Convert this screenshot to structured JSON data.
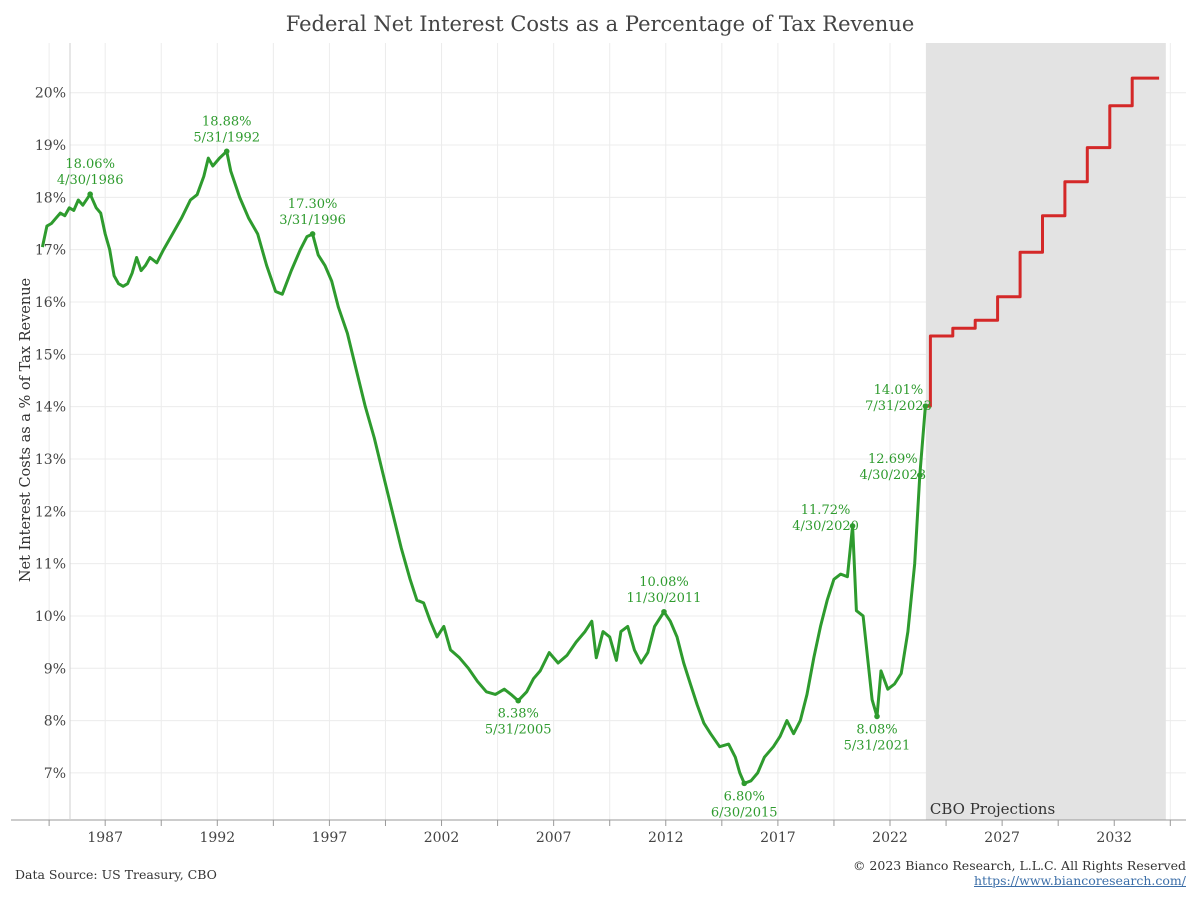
{
  "chart_data": {
    "type": "line",
    "title": "Federal Net Interest Costs as a Percentage of Tax Revenue",
    "ylabel": "Net Interest Costs as a % of Tax Revenue",
    "xlabel": "",
    "xlim": [
      1982.8,
      2035.2
    ],
    "ylim": [
      6.1,
      20.95
    ],
    "x_ticks": [
      "1987",
      "1992",
      "1997",
      "2002",
      "2007",
      "2012",
      "2017",
      "2022",
      "2027",
      "2032"
    ],
    "y_ticks": [
      "7%",
      "8%",
      "9%",
      "10%",
      "11%",
      "12%",
      "13%",
      "14%",
      "15%",
      "16%",
      "17%",
      "18%",
      "19%",
      "20%"
    ],
    "grid": true,
    "shaded_region": {
      "x_start": 2023.6,
      "x_end": 2034.3,
      "label": "CBO Projections",
      "color": "#e3e3e3"
    },
    "series": [
      {
        "color": "#2e9b2e",
        "points": [
          [
            1984.2,
            17.05
          ],
          [
            1984.4,
            17.45
          ],
          [
            1984.6,
            17.5
          ],
          [
            1984.8,
            17.6
          ],
          [
            1985.0,
            17.7
          ],
          [
            1985.2,
            17.65
          ],
          [
            1985.4,
            17.8
          ],
          [
            1985.6,
            17.75
          ],
          [
            1985.8,
            17.95
          ],
          [
            1986.0,
            17.85
          ],
          [
            1986.33,
            18.06
          ],
          [
            1986.6,
            17.8
          ],
          [
            1986.8,
            17.7
          ],
          [
            1987.0,
            17.3
          ],
          [
            1987.2,
            17.0
          ],
          [
            1987.4,
            16.5
          ],
          [
            1987.6,
            16.35
          ],
          [
            1987.8,
            16.3
          ],
          [
            1988.0,
            16.35
          ],
          [
            1988.2,
            16.55
          ],
          [
            1988.4,
            16.85
          ],
          [
            1988.6,
            16.6
          ],
          [
            1988.8,
            16.7
          ],
          [
            1989.0,
            16.85
          ],
          [
            1989.3,
            16.75
          ],
          [
            1989.6,
            17.0
          ],
          [
            1990.0,
            17.3
          ],
          [
            1990.4,
            17.6
          ],
          [
            1990.8,
            17.95
          ],
          [
            1991.1,
            18.05
          ],
          [
            1991.4,
            18.4
          ],
          [
            1991.6,
            18.75
          ],
          [
            1991.8,
            18.6
          ],
          [
            1992.1,
            18.75
          ],
          [
            1992.42,
            18.88
          ],
          [
            1992.6,
            18.5
          ],
          [
            1993.0,
            18.0
          ],
          [
            1993.4,
            17.6
          ],
          [
            1993.8,
            17.3
          ],
          [
            1994.2,
            16.7
          ],
          [
            1994.6,
            16.2
          ],
          [
            1994.9,
            16.15
          ],
          [
            1995.3,
            16.6
          ],
          [
            1995.7,
            17.0
          ],
          [
            1996.0,
            17.25
          ],
          [
            1996.25,
            17.3
          ],
          [
            1996.5,
            16.9
          ],
          [
            1996.8,
            16.7
          ],
          [
            1997.1,
            16.4
          ],
          [
            1997.4,
            15.9
          ],
          [
            1997.8,
            15.4
          ],
          [
            1998.2,
            14.7
          ],
          [
            1998.6,
            14.0
          ],
          [
            1999.0,
            13.4
          ],
          [
            1999.4,
            12.7
          ],
          [
            1999.8,
            12.0
          ],
          [
            2000.2,
            11.3
          ],
          [
            2000.6,
            10.7
          ],
          [
            2000.9,
            10.3
          ],
          [
            2001.2,
            10.25
          ],
          [
            2001.5,
            9.9
          ],
          [
            2001.8,
            9.6
          ],
          [
            2002.1,
            9.8
          ],
          [
            2002.4,
            9.35
          ],
          [
            2002.8,
            9.2
          ],
          [
            2003.2,
            9.0
          ],
          [
            2003.6,
            8.75
          ],
          [
            2004.0,
            8.55
          ],
          [
            2004.4,
            8.5
          ],
          [
            2004.8,
            8.6
          ],
          [
            2005.1,
            8.5
          ],
          [
            2005.42,
            8.38
          ],
          [
            2005.8,
            8.55
          ],
          [
            2006.1,
            8.8
          ],
          [
            2006.4,
            8.95
          ],
          [
            2006.8,
            9.3
          ],
          [
            2007.2,
            9.1
          ],
          [
            2007.6,
            9.25
          ],
          [
            2008.0,
            9.5
          ],
          [
            2008.4,
            9.7
          ],
          [
            2008.7,
            9.9
          ],
          [
            2008.9,
            9.2
          ],
          [
            2009.2,
            9.7
          ],
          [
            2009.5,
            9.6
          ],
          [
            2009.8,
            9.15
          ],
          [
            2010.0,
            9.7
          ],
          [
            2010.3,
            9.8
          ],
          [
            2010.6,
            9.35
          ],
          [
            2010.9,
            9.1
          ],
          [
            2011.2,
            9.3
          ],
          [
            2011.5,
            9.8
          ],
          [
            2011.92,
            10.08
          ],
          [
            2012.2,
            9.9
          ],
          [
            2012.5,
            9.6
          ],
          [
            2012.8,
            9.1
          ],
          [
            2013.1,
            8.7
          ],
          [
            2013.4,
            8.3
          ],
          [
            2013.7,
            7.95
          ],
          [
            2014.0,
            7.75
          ],
          [
            2014.4,
            7.5
          ],
          [
            2014.8,
            7.55
          ],
          [
            2015.1,
            7.3
          ],
          [
            2015.3,
            7.0
          ],
          [
            2015.5,
            6.8
          ],
          [
            2015.8,
            6.85
          ],
          [
            2016.1,
            7.0
          ],
          [
            2016.4,
            7.3
          ],
          [
            2016.8,
            7.5
          ],
          [
            2017.1,
            7.7
          ],
          [
            2017.4,
            8.0
          ],
          [
            2017.7,
            7.75
          ],
          [
            2018.0,
            8.0
          ],
          [
            2018.3,
            8.5
          ],
          [
            2018.6,
            9.2
          ],
          [
            2018.9,
            9.8
          ],
          [
            2019.2,
            10.3
          ],
          [
            2019.5,
            10.7
          ],
          [
            2019.8,
            10.8
          ],
          [
            2020.1,
            10.75
          ],
          [
            2020.33,
            11.72
          ],
          [
            2020.5,
            10.1
          ],
          [
            2020.8,
            10.0
          ],
          [
            2021.0,
            9.2
          ],
          [
            2021.2,
            8.4
          ],
          [
            2021.42,
            8.08
          ],
          [
            2021.6,
            8.95
          ],
          [
            2021.9,
            8.6
          ],
          [
            2022.2,
            8.7
          ],
          [
            2022.5,
            8.9
          ],
          [
            2022.8,
            9.7
          ],
          [
            2023.1,
            11.0
          ],
          [
            2023.33,
            12.69
          ],
          [
            2023.58,
            14.01
          ]
        ]
      },
      {
        "color": "#d42828",
        "points": [
          [
            2023.58,
            14.01
          ],
          [
            2023.8,
            14.01
          ],
          [
            2023.8,
            15.35
          ],
          [
            2024.8,
            15.35
          ],
          [
            2024.8,
            15.5
          ],
          [
            2025.8,
            15.5
          ],
          [
            2025.8,
            15.65
          ],
          [
            2026.8,
            15.65
          ],
          [
            2026.8,
            16.1
          ],
          [
            2027.8,
            16.1
          ],
          [
            2027.8,
            16.95
          ],
          [
            2028.8,
            16.95
          ],
          [
            2028.8,
            17.65
          ],
          [
            2029.8,
            17.65
          ],
          [
            2029.8,
            18.3
          ],
          [
            2030.8,
            18.3
          ],
          [
            2030.8,
            18.95
          ],
          [
            2031.8,
            18.95
          ],
          [
            2031.8,
            19.75
          ],
          [
            2032.8,
            19.75
          ],
          [
            2032.8,
            20.28
          ],
          [
            2034.0,
            20.28
          ]
        ]
      }
    ],
    "annotations": [
      {
        "x": 1986.33,
        "y": 18.06,
        "lines": [
          "18.06%",
          "4/30/1986"
        ],
        "position": "above"
      },
      {
        "x": 1992.42,
        "y": 18.88,
        "lines": [
          "18.88%",
          "5/31/1992"
        ],
        "position": "above"
      },
      {
        "x": 1996.25,
        "y": 17.3,
        "lines": [
          "17.30%",
          "3/31/1996"
        ],
        "position": "above"
      },
      {
        "x": 2005.42,
        "y": 8.38,
        "lines": [
          "8.38%",
          "5/31/2005"
        ],
        "position": "below"
      },
      {
        "x": 2011.92,
        "y": 10.08,
        "lines": [
          "10.08%",
          "11/30/2011"
        ],
        "position": "above"
      },
      {
        "x": 2015.5,
        "y": 6.8,
        "lines": [
          "6.80%",
          "6/30/2015"
        ],
        "position": "below"
      },
      {
        "x": 2020.33,
        "y": 11.72,
        "lines": [
          "11.72%",
          "4/30/2020"
        ],
        "position": "left"
      },
      {
        "x": 2021.42,
        "y": 8.08,
        "lines": [
          "8.08%",
          "5/31/2021"
        ],
        "position": "below"
      },
      {
        "x": 2023.33,
        "y": 12.69,
        "lines": [
          "12.69%",
          "4/30/2023"
        ],
        "position": "left"
      },
      {
        "x": 2023.58,
        "y": 14.01,
        "lines": [
          "14.01%",
          "7/31/2023"
        ],
        "position": "left"
      }
    ]
  },
  "footer": {
    "source": "Data Source: US Treasury, CBO",
    "copyright": "© 2023 Bianco Research, L.L.C. All Rights Reserved",
    "link": "https://www.biancoresearch.com/"
  }
}
